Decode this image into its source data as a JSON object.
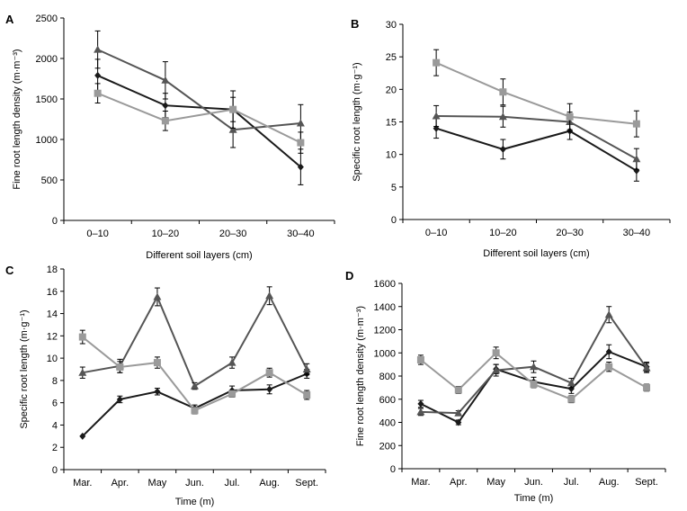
{
  "chart_data": [
    {
      "panel": "A",
      "type": "line",
      "xlabel": "Different soil layers (cm)",
      "ylabel": "Fine root length density (m·m⁻³)",
      "categories": [
        "0–10",
        "10–20",
        "20–30",
        "30–40"
      ],
      "ylim": [
        0,
        2500
      ],
      "yticks": [
        0,
        500,
        1000,
        1500,
        2000,
        2500
      ],
      "grid": false,
      "series": [
        {
          "marker": "diamond",
          "color": "#1a1a1a",
          "values": [
            1790,
            1420,
            1370,
            660
          ],
          "errors": [
            200,
            150,
            150,
            220
          ]
        },
        {
          "marker": "triangle",
          "color": "#555555",
          "values": [
            2110,
            1730,
            1120,
            1200
          ],
          "errors": [
            230,
            230,
            220,
            230
          ]
        },
        {
          "marker": "square",
          "color": "#9a9a9a",
          "values": [
            1570,
            1230,
            1370,
            960
          ],
          "errors": [
            120,
            120,
            230,
            130
          ]
        }
      ]
    },
    {
      "panel": "B",
      "type": "line",
      "xlabel": "Different soil layers (cm)",
      "ylabel": "Specific root length (m·g⁻¹)",
      "categories": [
        "0–10",
        "10–20",
        "20–30",
        "30–40"
      ],
      "ylim": [
        0,
        30
      ],
      "yticks": [
        0,
        5,
        10,
        15,
        20,
        25,
        30
      ],
      "grid": false,
      "series": [
        {
          "marker": "diamond",
          "color": "#1a1a1a",
          "values": [
            14.0,
            10.8,
            13.6,
            7.5
          ],
          "errors": [
            1.5,
            1.5,
            1.3,
            1.6
          ]
        },
        {
          "marker": "triangle",
          "color": "#555555",
          "values": [
            15.9,
            15.8,
            15.0,
            9.3
          ],
          "errors": [
            1.6,
            1.6,
            1.5,
            1.6
          ]
        },
        {
          "marker": "square",
          "color": "#9a9a9a",
          "values": [
            24.1,
            19.6,
            15.8,
            14.7
          ],
          "errors": [
            2.0,
            2.0,
            2.0,
            2.0
          ]
        }
      ]
    },
    {
      "panel": "C",
      "type": "line",
      "xlabel": "Time (m)",
      "ylabel": "Specific root length (m·g⁻¹)",
      "categories": [
        "Mar.",
        "Apr.",
        "May",
        "Jun.",
        "Jul.",
        "Aug.",
        "Sept."
      ],
      "ylim": [
        0,
        18
      ],
      "yticks": [
        0,
        2,
        4,
        6,
        8,
        10,
        12,
        14,
        16,
        18
      ],
      "grid": false,
      "series": [
        {
          "marker": "diamond",
          "color": "#1a1a1a",
          "values": [
            3.0,
            6.3,
            7.0,
            5.5,
            7.1,
            7.2,
            8.6
          ],
          "errors": [
            0.0,
            0.3,
            0.3,
            0.3,
            0.4,
            0.4,
            0.4
          ]
        },
        {
          "marker": "triangle",
          "color": "#555555",
          "values": [
            8.7,
            9.3,
            15.5,
            7.5,
            9.6,
            15.6,
            9.0
          ],
          "errors": [
            0.5,
            0.6,
            0.8,
            0.3,
            0.5,
            0.8,
            0.5
          ]
        },
        {
          "marker": "square",
          "color": "#9a9a9a",
          "values": [
            11.9,
            9.2,
            9.6,
            5.3,
            6.8,
            8.7,
            6.7
          ],
          "errors": [
            0.6,
            0.5,
            0.5,
            0.3,
            0.3,
            0.4,
            0.4
          ]
        }
      ]
    },
    {
      "panel": "D",
      "type": "line",
      "xlabel": "Time (m)",
      "ylabel": "Fine root length density (m·m⁻³)",
      "categories": [
        "Mar.",
        "Apr.",
        "May",
        "Jun.",
        "Jul.",
        "Aug.",
        "Sept."
      ],
      "ylim": [
        0,
        1600
      ],
      "yticks": [
        0,
        200,
        400,
        600,
        800,
        1000,
        1200,
        1400,
        1600
      ],
      "grid": false,
      "series": [
        {
          "marker": "diamond",
          "color": "#1a1a1a",
          "values": [
            560,
            400,
            860,
            750,
            690,
            1010,
            880
          ],
          "errors": [
            30,
            20,
            40,
            40,
            40,
            60,
            40
          ]
        },
        {
          "marker": "triangle",
          "color": "#555555",
          "values": [
            490,
            480,
            850,
            880,
            740,
            1330,
            870
          ],
          "errors": [
            30,
            20,
            50,
            50,
            40,
            70,
            40
          ]
        },
        {
          "marker": "square",
          "color": "#9a9a9a",
          "values": [
            940,
            680,
            1000,
            730,
            600,
            880,
            700
          ],
          "errors": [
            40,
            30,
            50,
            30,
            30,
            40,
            30
          ]
        }
      ]
    }
  ]
}
